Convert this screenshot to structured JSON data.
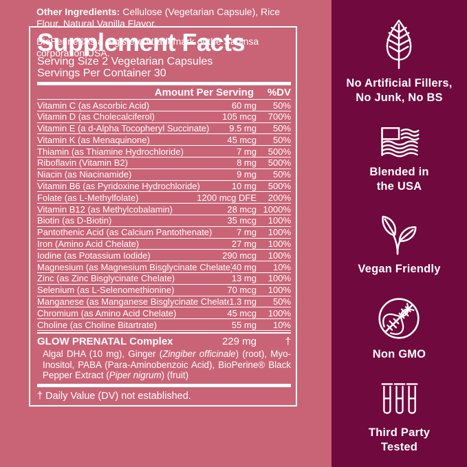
{
  "panel": {
    "title": "Supplement Facts",
    "serving_size": "Serving Size 2 Vegetarian Capsules",
    "servings_per_container": "Servings Per Container 30",
    "col_amount": "Amount Per Serving",
    "col_dv": "%DV",
    "rows": [
      {
        "name": "Vitamin C (as Ascorbic Acid)",
        "amount": "60 mg",
        "dv": "50%"
      },
      {
        "name": "Vitamin D (as Cholecalciferol)",
        "amount": "105 mcg",
        "dv": "700%"
      },
      {
        "name": "Vitamin E (a d-Alpha Tocopheryl Succinate)",
        "amount": "9.5 mg",
        "dv": "50%"
      },
      {
        "name": "Vitamin K (as Menaquinone)",
        "amount": "45 mcg",
        "dv": "50%"
      },
      {
        "name": "Thiamin (as Thiamine Hydrochloride)",
        "amount": "7 mg",
        "dv": "500%"
      },
      {
        "name": "Riboflavin (Vitamin B2)",
        "amount": "8 mg",
        "dv": "500%"
      },
      {
        "name": "Niacin (as Niacinamide)",
        "amount": "9 mg",
        "dv": "50%"
      },
      {
        "name": "Vitamin B6 (as Pyridoxine Hydrochloride)",
        "amount": "10 mg",
        "dv": "500%"
      },
      {
        "name": "Folate (as L-Methylfolate)",
        "amount": "1200 mcg DFE",
        "dv": "200%"
      },
      {
        "name": "Vitamin B12 (as Methylcobalamin)",
        "amount": "28 mcg",
        "dv": "1000%"
      },
      {
        "name": "Biotin (as D-Biotin)",
        "amount": "35 mcg",
        "dv": "100%"
      },
      {
        "name": "Pantothenic Acid (as Calcium Pantothenate)",
        "amount": "7 mg",
        "dv": "100%"
      },
      {
        "name": "Iron (Amino Acid Chelate)",
        "amount": "27 mg",
        "dv": "100%"
      },
      {
        "name": "Iodine (as Potassium Iodide)",
        "amount": "290 mcg",
        "dv": "100%"
      },
      {
        "name": "Magnesium (as Magnesium Bisglycinate Chelate)",
        "amount": "40 mg",
        "dv": "10%"
      },
      {
        "name": "Zinc (as Zinc Bisglycinate Chelate)",
        "amount": "13 mg",
        "dv": "100%"
      },
      {
        "name": "Selenium (as L-Selenomethionine)",
        "amount": "70 mcg",
        "dv": "100%"
      },
      {
        "name": "Manganese (as Manganese Bisglycinate Chelate)",
        "amount": "1.3 mg",
        "dv": "50%"
      },
      {
        "name": "Chromium (as Amino Acid Chelate)",
        "amount": "45 mcg",
        "dv": "100%"
      },
      {
        "name": "Choline (as Choline Bitartrate)",
        "amount": "55 mg",
        "dv": "10%"
      }
    ],
    "complex": {
      "name": "GLOW PRENATAL Complex",
      "amount": "229 mg",
      "dv": "†",
      "description_segments": [
        {
          "text": "Algal DHA (10 mg), Ginger ("
        },
        {
          "text": "Zingiber officinale",
          "italic": true
        },
        {
          "text": ") (root), Myo-Inositol, PABA (Para-Aminobenzoic Acid), BioPerine® Black Pepper Extract ("
        },
        {
          "text": "Piper nigrum",
          "italic": true
        },
        {
          "text": ") (fruit)"
        }
      ]
    },
    "footnote": "† Daily Value (DV) not established."
  },
  "below_panel": {
    "other_ingredients_label": "Other Ingredients:",
    "other_ingredients_text": " Cellulose (Vegetarian Capsule), Rice Flour, Natural Vanilla Flavor.",
    "trademark_note": "BioPerine® is a registered trademark of the Sabinsa corporation USA."
  },
  "sidebar": {
    "items": [
      {
        "icon": "leaf-icon",
        "label": "No Artificial Fillers,\nNo Junk, No BS"
      },
      {
        "icon": "usa-flag-icon",
        "label": "Blended in\nthe USA"
      },
      {
        "icon": "vegan-sprout-icon",
        "label": "Vegan Friendly"
      },
      {
        "icon": "non-gmo-icon",
        "label": "Non GMO"
      },
      {
        "icon": "test-tubes-icon",
        "label": "Third Party\nTested"
      }
    ]
  },
  "colors": {
    "background_pink": "#c96477",
    "sidebar_maroon": "#70093e",
    "text_white": "#ffffff"
  }
}
